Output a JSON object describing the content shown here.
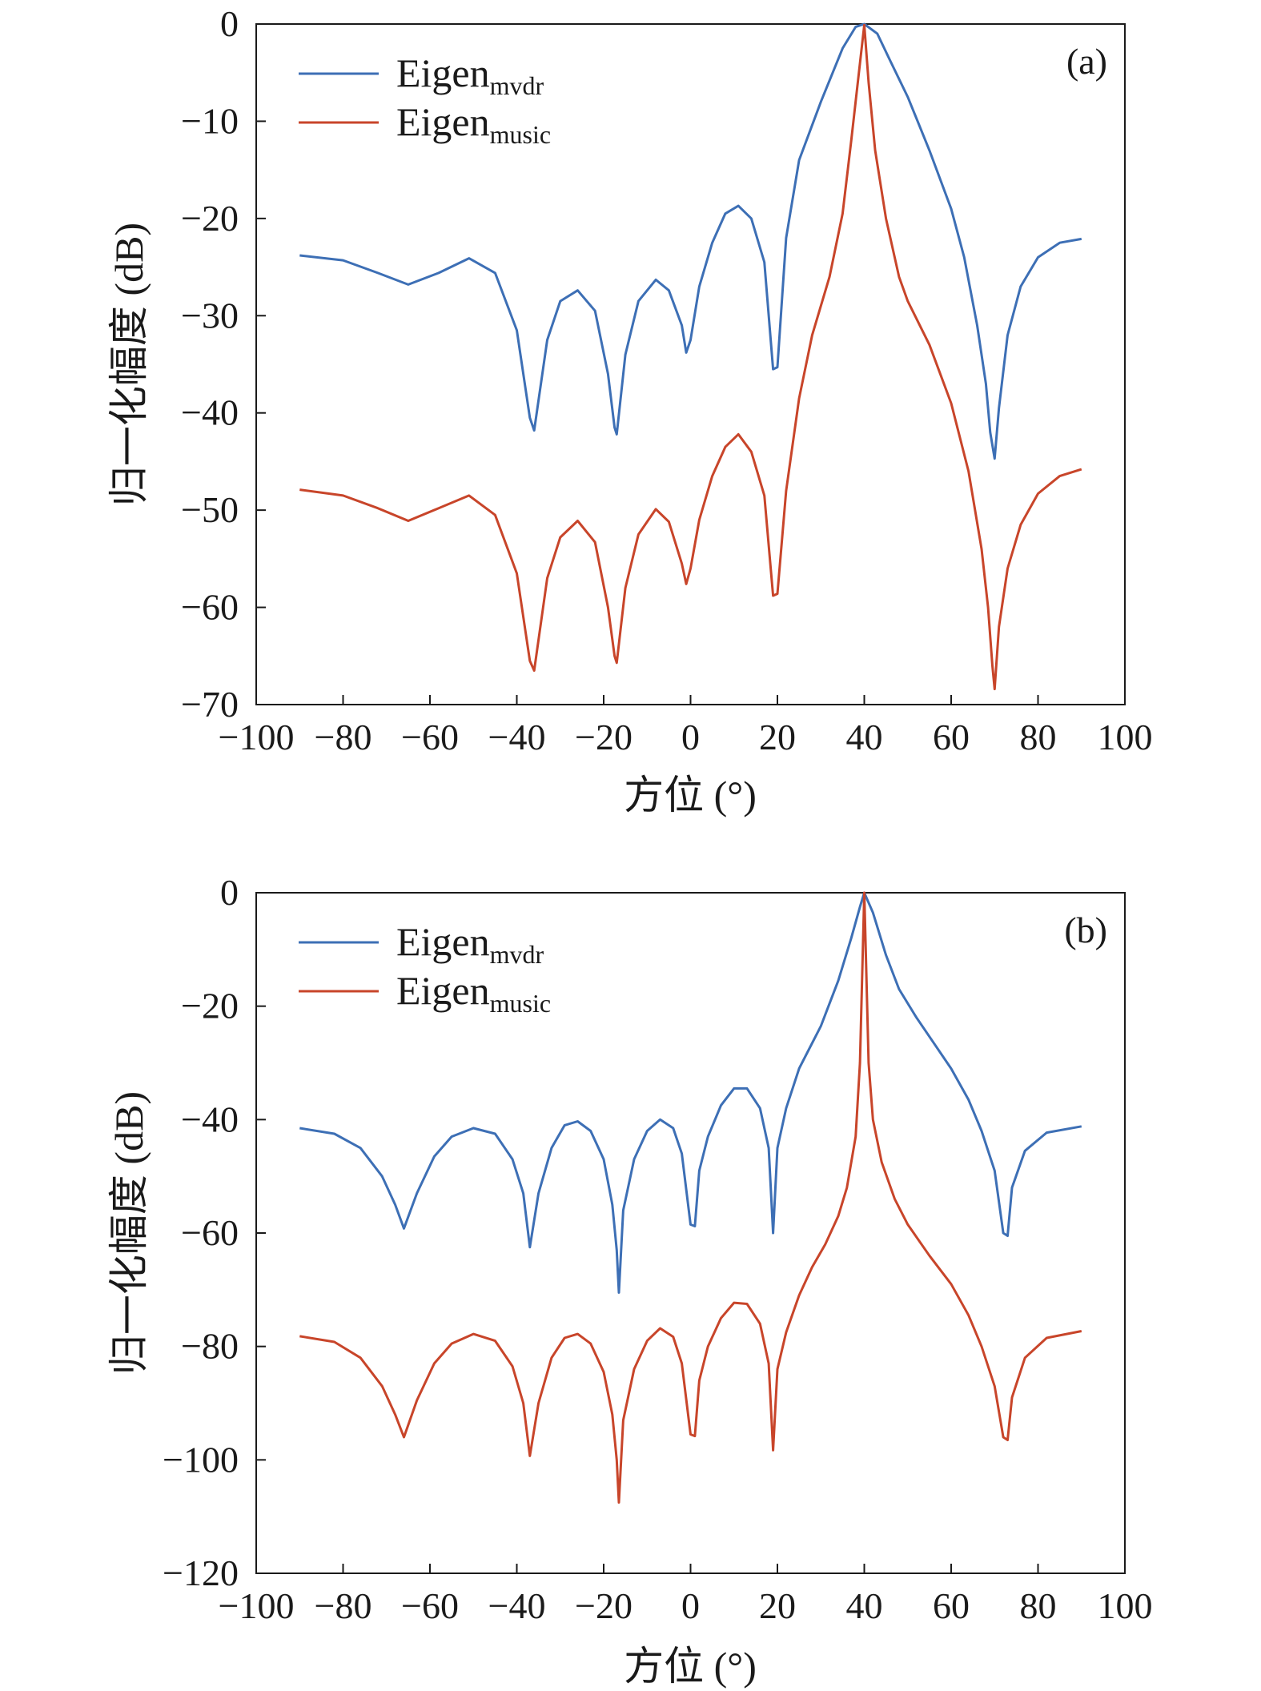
{
  "chart_data": [
    {
      "type": "line",
      "panel_label": "(a)",
      "xlabel": "方位 (°)",
      "ylabel": "归一化幅度 (dB)",
      "xlim": [
        -100,
        100
      ],
      "ylim": [
        -70,
        0
      ],
      "xticks": [
        -100,
        -80,
        -60,
        -40,
        -20,
        0,
        20,
        40,
        60,
        80,
        100
      ],
      "yticks": [
        0,
        -10,
        -20,
        -30,
        -40,
        -50,
        -60,
        -70
      ],
      "x_tick_labels": [
        "−100",
        "−80",
        "−60",
        "−40",
        "−20",
        "0",
        "20",
        "40",
        "60",
        "80",
        "100"
      ],
      "y_tick_labels": [
        "0",
        "−10",
        "−20",
        "−30",
        "−40",
        "−50",
        "−60",
        "−70"
      ],
      "grid": false,
      "legend_position": "top-left",
      "series": [
        {
          "name": "Eigen",
          "name_subscript": "mvdr",
          "color": "#3d6fb5",
          "points": [
            [
              -90,
              -23.8
            ],
            [
              -80,
              -24.3
            ],
            [
              -72,
              -25.6
            ],
            [
              -65,
              -26.8
            ],
            [
              -58,
              -25.6
            ],
            [
              -51,
              -24.1
            ],
            [
              -45,
              -25.6
            ],
            [
              -40,
              -31.5
            ],
            [
              -37,
              -40.5
            ],
            [
              -36,
              -41.8
            ],
            [
              -33,
              -32.5
            ],
            [
              -30,
              -28.5
            ],
            [
              -26,
              -27.4
            ],
            [
              -22,
              -29.5
            ],
            [
              -19,
              -36
            ],
            [
              -17.5,
              -41.5
            ],
            [
              -17,
              -42.2
            ],
            [
              -15,
              -34
            ],
            [
              -12,
              -28.5
            ],
            [
              -8,
              -26.3
            ],
            [
              -5,
              -27.4
            ],
            [
              -2,
              -31
            ],
            [
              -1,
              -33.8
            ],
            [
              0,
              -32.5
            ],
            [
              2,
              -27
            ],
            [
              5,
              -22.5
            ],
            [
              8,
              -19.5
            ],
            [
              11,
              -18.7
            ],
            [
              14,
              -20
            ],
            [
              17,
              -24.5
            ],
            [
              19,
              -35.5
            ],
            [
              20,
              -35.3
            ],
            [
              22,
              -22
            ],
            [
              25,
              -14
            ],
            [
              30,
              -8
            ],
            [
              35,
              -2.5
            ],
            [
              38,
              -0.3
            ],
            [
              40,
              0
            ],
            [
              43,
              -1
            ],
            [
              46,
              -3.8
            ],
            [
              50,
              -7.5
            ],
            [
              55,
              -13
            ],
            [
              60,
              -19
            ],
            [
              63,
              -24
            ],
            [
              66,
              -31
            ],
            [
              68,
              -37
            ],
            [
              69,
              -42
            ],
            [
              70,
              -44.7
            ],
            [
              71,
              -39.5
            ],
            [
              73,
              -32
            ],
            [
              76,
              -27
            ],
            [
              80,
              -24
            ],
            [
              85,
              -22.5
            ],
            [
              90,
              -22.1
            ]
          ]
        },
        {
          "name": "Eigen",
          "name_subscript": "music",
          "color": "#c8452a",
          "points": [
            [
              -90,
              -47.9
            ],
            [
              -80,
              -48.5
            ],
            [
              -72,
              -49.8
            ],
            [
              -65,
              -51.1
            ],
            [
              -58,
              -49.8
            ],
            [
              -51,
              -48.5
            ],
            [
              -45,
              -50.5
            ],
            [
              -40,
              -56.5
            ],
            [
              -37,
              -65.5
            ],
            [
              -36,
              -66.5
            ],
            [
              -33,
              -57
            ],
            [
              -30,
              -52.8
            ],
            [
              -26,
              -51.1
            ],
            [
              -22,
              -53.3
            ],
            [
              -19,
              -60
            ],
            [
              -17.5,
              -65
            ],
            [
              -17,
              -65.7
            ],
            [
              -15,
              -58
            ],
            [
              -12,
              -52.5
            ],
            [
              -8,
              -49.9
            ],
            [
              -5,
              -51.2
            ],
            [
              -2,
              -55.5
            ],
            [
              -1,
              -57.6
            ],
            [
              0,
              -56
            ],
            [
              2,
              -51
            ],
            [
              5,
              -46.5
            ],
            [
              8,
              -43.5
            ],
            [
              11,
              -42.2
            ],
            [
              14,
              -44
            ],
            [
              17,
              -48.5
            ],
            [
              19,
              -58.8
            ],
            [
              20,
              -58.6
            ],
            [
              22,
              -48
            ],
            [
              25,
              -38.5
            ],
            [
              28,
              -32
            ],
            [
              32,
              -26
            ],
            [
              35,
              -19.5
            ],
            [
              37,
              -12
            ],
            [
              38.5,
              -6
            ],
            [
              40,
              -0.1
            ],
            [
              41,
              -6
            ],
            [
              42.5,
              -13
            ],
            [
              45,
              -20
            ],
            [
              48,
              -26
            ],
            [
              50,
              -28.5
            ],
            [
              55,
              -33
            ],
            [
              60,
              -39
            ],
            [
              64,
              -46
            ],
            [
              67,
              -54
            ],
            [
              68.5,
              -60
            ],
            [
              69.5,
              -66
            ],
            [
              70,
              -68.4
            ],
            [
              71,
              -62
            ],
            [
              73,
              -56
            ],
            [
              76,
              -51.5
            ],
            [
              80,
              -48.3
            ],
            [
              85,
              -46.5
            ],
            [
              90,
              -45.8
            ]
          ]
        }
      ]
    },
    {
      "type": "line",
      "panel_label": "(b)",
      "xlabel": "方位 (°)",
      "ylabel": "归一化幅度 (dB)",
      "xlim": [
        -100,
        100
      ],
      "ylim": [
        -120,
        0
      ],
      "xticks": [
        -100,
        -80,
        -60,
        -40,
        -20,
        0,
        20,
        40,
        60,
        80,
        100
      ],
      "yticks": [
        0,
        -20,
        -40,
        -60,
        -80,
        -100,
        -120
      ],
      "x_tick_labels": [
        "−100",
        "−80",
        "−60",
        "−40",
        "−20",
        "0",
        "20",
        "40",
        "60",
        "80",
        "100"
      ],
      "y_tick_labels": [
        "0",
        "−20",
        "−40",
        "−60",
        "−80",
        "−100",
        "−120"
      ],
      "grid": false,
      "legend_position": "top-left",
      "series": [
        {
          "name": "Eigen",
          "name_subscript": "mvdr",
          "color": "#3d6fb5",
          "points": [
            [
              -90,
              -41.5
            ],
            [
              -82,
              -42.5
            ],
            [
              -76,
              -45
            ],
            [
              -71,
              -50
            ],
            [
              -68,
              -55
            ],
            [
              -66,
              -59.2
            ],
            [
              -63,
              -53
            ],
            [
              -59,
              -46.5
            ],
            [
              -55,
              -43
            ],
            [
              -50,
              -41.5
            ],
            [
              -45,
              -42.5
            ],
            [
              -41,
              -47
            ],
            [
              -38.5,
              -53
            ],
            [
              -37,
              -62.5
            ],
            [
              -35,
              -53
            ],
            [
              -32,
              -45
            ],
            [
              -29,
              -41
            ],
            [
              -26,
              -40.3
            ],
            [
              -23,
              -42
            ],
            [
              -20,
              -47
            ],
            [
              -18,
              -55
            ],
            [
              -17,
              -63
            ],
            [
              -16.5,
              -70.5
            ],
            [
              -15.5,
              -56
            ],
            [
              -13,
              -47
            ],
            [
              -10,
              -42
            ],
            [
              -7,
              -40
            ],
            [
              -4,
              -41.5
            ],
            [
              -2,
              -46
            ],
            [
              0,
              -58.5
            ],
            [
              1,
              -58.8
            ],
            [
              2,
              -49
            ],
            [
              4,
              -43
            ],
            [
              7,
              -37.5
            ],
            [
              10,
              -34.5
            ],
            [
              13,
              -34.5
            ],
            [
              16,
              -38
            ],
            [
              18,
              -45
            ],
            [
              19,
              -60
            ],
            [
              20,
              -45
            ],
            [
              22,
              -38
            ],
            [
              25,
              -31
            ],
            [
              30,
              -23.5
            ],
            [
              34,
              -15.5
            ],
            [
              37,
              -8
            ],
            [
              39,
              -2.5
            ],
            [
              40,
              0
            ],
            [
              42,
              -3.5
            ],
            [
              45,
              -11
            ],
            [
              48,
              -17
            ],
            [
              52,
              -22
            ],
            [
              56,
              -26.5
            ],
            [
              60,
              -31
            ],
            [
              64,
              -36.5
            ],
            [
              67,
              -42
            ],
            [
              70,
              -49
            ],
            [
              72,
              -60
            ],
            [
              73,
              -60.5
            ],
            [
              74,
              -52
            ],
            [
              77,
              -45.5
            ],
            [
              82,
              -42.3
            ],
            [
              90,
              -41.2
            ]
          ]
        },
        {
          "name": "Eigen",
          "name_subscript": "music",
          "color": "#c8452a",
          "points": [
            [
              -90,
              -78.2
            ],
            [
              -82,
              -79.2
            ],
            [
              -76,
              -82
            ],
            [
              -71,
              -87
            ],
            [
              -68,
              -92
            ],
            [
              -66,
              -96
            ],
            [
              -63,
              -89.5
            ],
            [
              -59,
              -83
            ],
            [
              -55,
              -79.5
            ],
            [
              -50,
              -77.8
            ],
            [
              -45,
              -79
            ],
            [
              -41,
              -83.5
            ],
            [
              -38.5,
              -90
            ],
            [
              -37,
              -99.3
            ],
            [
              -35,
              -90
            ],
            [
              -32,
              -82
            ],
            [
              -29,
              -78.5
            ],
            [
              -26,
              -77.8
            ],
            [
              -23,
              -79.5
            ],
            [
              -20,
              -84.5
            ],
            [
              -18,
              -92
            ],
            [
              -17,
              -100
            ],
            [
              -16.5,
              -107.5
            ],
            [
              -15.5,
              -93
            ],
            [
              -13,
              -84
            ],
            [
              -10,
              -79
            ],
            [
              -7,
              -76.8
            ],
            [
              -4,
              -78.3
            ],
            [
              -2,
              -83
            ],
            [
              0,
              -95.5
            ],
            [
              1,
              -95.8
            ],
            [
              2,
              -86
            ],
            [
              4,
              -80
            ],
            [
              7,
              -75
            ],
            [
              10,
              -72.3
            ],
            [
              13,
              -72.5
            ],
            [
              16,
              -76
            ],
            [
              18,
              -83
            ],
            [
              19,
              -98.3
            ],
            [
              20,
              -84
            ],
            [
              22,
              -77.5
            ],
            [
              25,
              -71
            ],
            [
              28,
              -66
            ],
            [
              31,
              -62
            ],
            [
              34,
              -57
            ],
            [
              36,
              -52
            ],
            [
              38,
              -43
            ],
            [
              39,
              -30
            ],
            [
              40,
              0
            ],
            [
              41,
              -30
            ],
            [
              42,
              -40
            ],
            [
              44,
              -47.5
            ],
            [
              47,
              -54
            ],
            [
              50,
              -58.5
            ],
            [
              55,
              -64
            ],
            [
              60,
              -69
            ],
            [
              64,
              -74.5
            ],
            [
              67,
              -80
            ],
            [
              70,
              -87
            ],
            [
              72,
              -96
            ],
            [
              73,
              -96.5
            ],
            [
              74,
              -89
            ],
            [
              77,
              -82
            ],
            [
              82,
              -78.5
            ],
            [
              90,
              -77.3
            ]
          ]
        }
      ]
    }
  ]
}
